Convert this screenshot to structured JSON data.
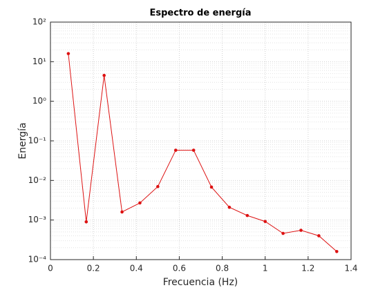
{
  "chart_data": {
    "type": "line",
    "title": "Espectro de energía",
    "xlabel": "Frecuencia (Hz)",
    "ylabel": "Energía",
    "x": [
      0.0833,
      0.1667,
      0.25,
      0.3333,
      0.4167,
      0.5,
      0.5833,
      0.6667,
      0.75,
      0.8333,
      0.9167,
      1.0,
      1.0833,
      1.1667,
      1.25,
      1.3333
    ],
    "series": [
      {
        "color": "#dd1111",
        "values": [
          16,
          0.0009,
          4.5,
          0.0016,
          0.0027,
          0.007,
          0.058,
          0.058,
          0.0068,
          0.0021,
          0.0013,
          0.00092,
          0.00046,
          0.00055,
          0.0004,
          0.00016
        ]
      }
    ],
    "xlim": [
      0,
      1.4
    ],
    "xticks": [
      0,
      0.2,
      0.4,
      0.6,
      0.8,
      1,
      1.2,
      1.4
    ],
    "ylim": [
      0.0001,
      100
    ],
    "yscale": "log",
    "yticks": [
      {
        "value": 0.0001,
        "label": "10⁻⁴"
      },
      {
        "value": 0.001,
        "label": "10⁻³"
      },
      {
        "value": 0.01,
        "label": "10⁻²"
      },
      {
        "value": 0.1,
        "label": "10⁻¹"
      },
      {
        "value": 1,
        "label": "10⁰"
      },
      {
        "value": 10,
        "label": "10¹"
      },
      {
        "value": 100,
        "label": "10²"
      }
    ],
    "grid": true,
    "minor_grid": true
  }
}
